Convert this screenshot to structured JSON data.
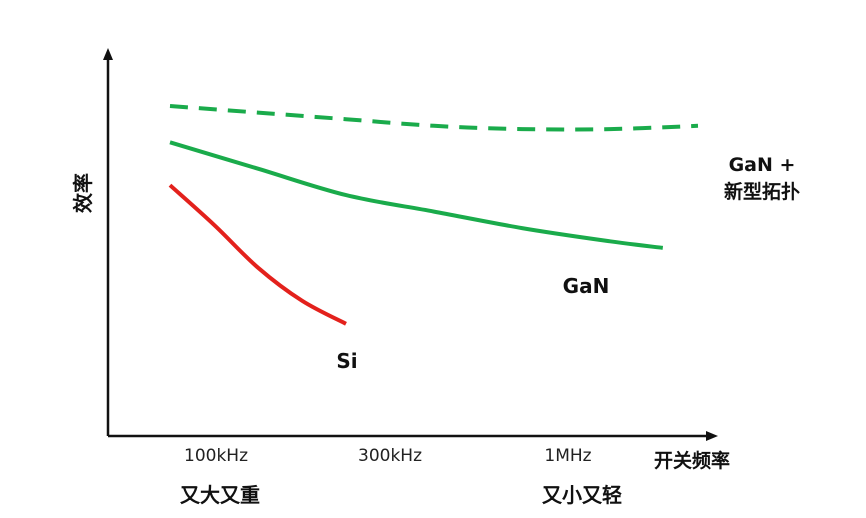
{
  "chart_data": {
    "type": "line",
    "title": "",
    "xlabel": "开关频率",
    "ylabel": "效率",
    "x_ticks": [
      "100kHz",
      "300kHz",
      "1MHz"
    ],
    "x_annotations": [
      "又大又重",
      "又小又轻"
    ],
    "grid": false,
    "series": [
      {
        "name": "Si",
        "color": "#e3211c",
        "style": "solid",
        "x": [
          0.0,
          0.25,
          0.5,
          0.75,
          1.0
        ],
        "y": [
          0.76,
          0.64,
          0.51,
          0.41,
          0.34
        ]
      },
      {
        "name": "GaN",
        "color": "#1aab4b",
        "style": "solid",
        "x": [
          0.0,
          0.5,
          1.0,
          1.5,
          2.0,
          2.5,
          2.8
        ],
        "y": [
          0.89,
          0.81,
          0.73,
          0.68,
          0.63,
          0.59,
          0.57
        ]
      },
      {
        "name": "GaN +\n新型拓扑",
        "name_lines": [
          "GaN +",
          "新型拓扑"
        ],
        "color": "#1aab4b",
        "style": "dashed",
        "x": [
          0.0,
          0.5,
          1.0,
          1.5,
          2.0,
          2.5,
          3.0
        ],
        "y": [
          1.0,
          0.98,
          0.96,
          0.94,
          0.93,
          0.93,
          0.94
        ]
      }
    ]
  }
}
